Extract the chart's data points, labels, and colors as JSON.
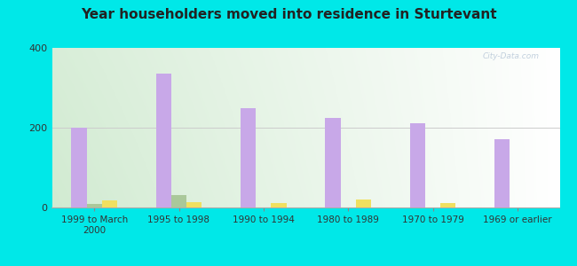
{
  "title": "Year householders moved into residence in Sturtevant",
  "categories": [
    "1999 to March\n2000",
    "1995 to 1998",
    "1990 to 1994",
    "1980 to 1989",
    "1970 to 1979",
    "1969 or earlier"
  ],
  "white": [
    200,
    335,
    248,
    225,
    212,
    172
  ],
  "black": [
    10,
    32,
    0,
    0,
    0,
    0
  ],
  "hispanic": [
    18,
    14,
    12,
    20,
    12,
    0
  ],
  "white_color": "#c8a8e8",
  "black_color": "#aac89a",
  "hispanic_color": "#f0e060",
  "bg_outer": "#00e8e8",
  "bg_plot_left": "#d0e8d0",
  "bg_plot_right": "#f8f8f8",
  "ylim": [
    0,
    400
  ],
  "yticks": [
    0,
    200,
    400
  ],
  "bar_width": 0.18,
  "title_fontsize": 11,
  "tick_fontsize": 7.5
}
